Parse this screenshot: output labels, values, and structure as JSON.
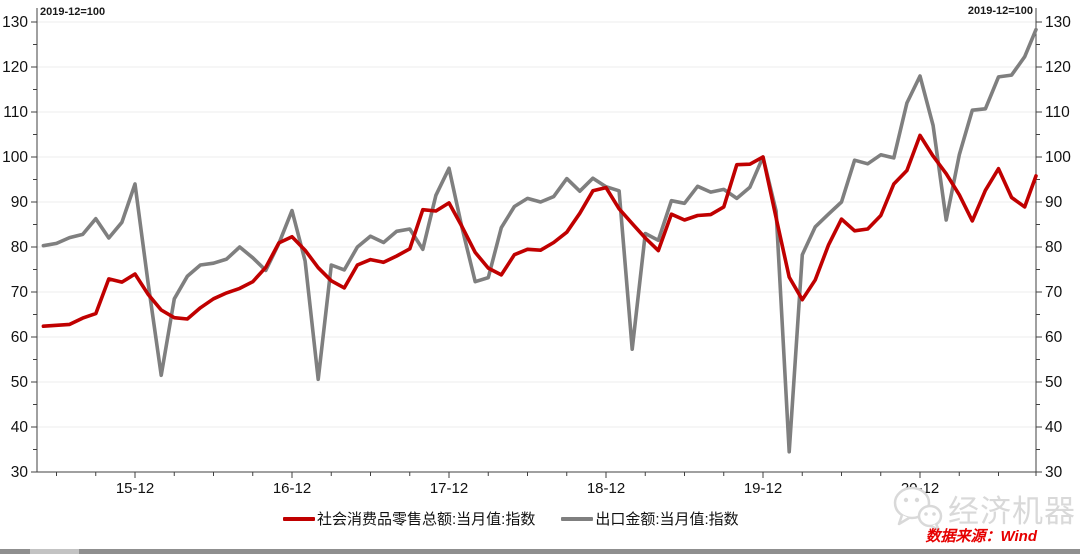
{
  "chart": {
    "note_left": "2019-12=100",
    "note_right": "2019-12=100",
    "source": "数据来源：Wind",
    "watermark": "经济机器",
    "colors": {
      "retail_red": "#c00000",
      "export_gray": "#7f7f7f",
      "axis": "#404040",
      "grid": "#ececec",
      "tick_label": "#111111"
    },
    "legend": [
      {
        "label": "社会消费品零售总额:当月值:指数",
        "color": "#c00000"
      },
      {
        "label": "出口金额:当月值:指数",
        "color": "#7f7f7f"
      }
    ]
  },
  "chart_data": {
    "type": "line",
    "title": "",
    "xlabel": "",
    "ylabel": "",
    "index_note": "2019-12=100",
    "x_unit": "month",
    "x_start": "2015-05",
    "x_end": "2021-09",
    "x_tick_labels": [
      "15-12",
      "16-12",
      "17-12",
      "18-12",
      "19-12",
      "20-12"
    ],
    "ylim": [
      30,
      130
    ],
    "y_tick_step": 10,
    "y_minor_tick_step": 5,
    "x_minor_tick_months": 3,
    "grid": "horizontal-only",
    "legend_position": "bottom-center",
    "series": [
      {
        "name": "社会消费品零售总额:当月值:指数",
        "color": "#c00000",
        "values": [
          62.4,
          62.6,
          62.8,
          64.2,
          65.2,
          72.9,
          72.2,
          74.0,
          69.5,
          66.0,
          64.3,
          64.0,
          66.5,
          68.5,
          69.8,
          70.8,
          72.3,
          75.5,
          80.9,
          82.3,
          79.3,
          75.4,
          72.5,
          70.9,
          76.0,
          77.2,
          76.6,
          78.0,
          79.6,
          88.3,
          88.0,
          89.8,
          84.5,
          78.8,
          75.3,
          73.8,
          78.3,
          79.5,
          79.3,
          81.0,
          83.3,
          87.5,
          92.5,
          93.2,
          88.5,
          85.2,
          82.0,
          79.2,
          87.3,
          86.0,
          87.0,
          87.2,
          88.9,
          98.3,
          98.4,
          100.0,
          86.5,
          73.3,
          68.3,
          72.7,
          80.4,
          86.2,
          83.6,
          84.0,
          87.0,
          94.0,
          97.0,
          104.8,
          100.2,
          96.3,
          91.6,
          85.8,
          92.6,
          97.4,
          91.0,
          88.9,
          95.8
        ]
      },
      {
        "name": "出口金额:当月值:指数",
        "color": "#7f7f7f",
        "values": [
          80.3,
          80.8,
          82.1,
          82.8,
          86.3,
          82.0,
          85.5,
          94.0,
          72.0,
          51.5,
          68.5,
          73.5,
          76.0,
          76.4,
          77.3,
          80.0,
          77.6,
          74.8,
          80.8,
          88.1,
          76.9,
          50.6,
          76.0,
          74.9,
          80.0,
          82.4,
          81.0,
          83.5,
          84.0,
          79.5,
          91.5,
          97.5,
          84.2,
          72.3,
          73.2,
          84.3,
          89.0,
          90.8,
          90.0,
          91.2,
          95.2,
          92.4,
          95.3,
          93.4,
          92.5,
          57.3,
          83.0,
          81.5,
          90.3,
          89.7,
          93.5,
          92.2,
          92.8,
          90.8,
          93.3,
          100.0,
          88.0,
          34.5,
          78.3,
          84.5,
          87.3,
          90.0,
          99.3,
          98.5,
          100.5,
          99.8,
          112.0,
          118.0,
          107.0,
          86.0,
          100.5,
          110.4,
          110.7,
          117.8,
          118.2,
          122.3,
          128.3
        ]
      }
    ]
  }
}
